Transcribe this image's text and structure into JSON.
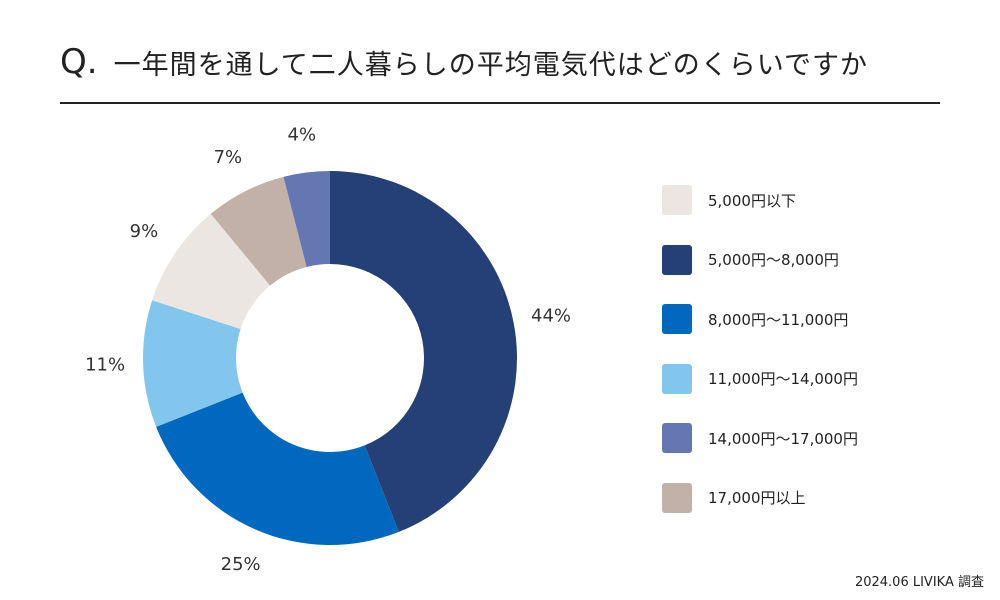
{
  "title": {
    "prefix": "Q.",
    "text": "一年間を通して二人暮らしの平均電気代はどのくらいですか"
  },
  "source": "2024.06 LIVIKA 調査",
  "chart_data": {
    "type": "pie",
    "variant": "donut",
    "title": "一年間を通して二人暮らしの平均電気代はどのくらいですか",
    "unit": "%",
    "categories": [
      "5,000円〜8,000円",
      "8,000円〜11,000円",
      "11,000円〜14,000円",
      "5,000円以下",
      "17,000円以上",
      "14,000円〜17,000円"
    ],
    "values": [
      44,
      25,
      11,
      9,
      7,
      4
    ],
    "colors": [
      "#253f77",
      "#0068bf",
      "#82c6ee",
      "#ebe6e1",
      "#c2b1a8",
      "#6477b2"
    ],
    "labels": [
      "44%",
      "25%",
      "11%",
      "9%",
      "7%",
      "4%"
    ],
    "legend_position": "right",
    "legend": [
      {
        "label": "5,000円以下",
        "color": "#ebe6e1"
      },
      {
        "label": "5,000円〜8,000円",
        "color": "#253f77"
      },
      {
        "label": "8,000円〜11,000円",
        "color": "#0068bf"
      },
      {
        "label": "11,000円〜14,000円",
        "color": "#82c6ee"
      },
      {
        "label": "14,000円〜17,000円",
        "color": "#6477b2"
      },
      {
        "label": "17,000円以上",
        "color": "#c2b1a8"
      }
    ]
  }
}
